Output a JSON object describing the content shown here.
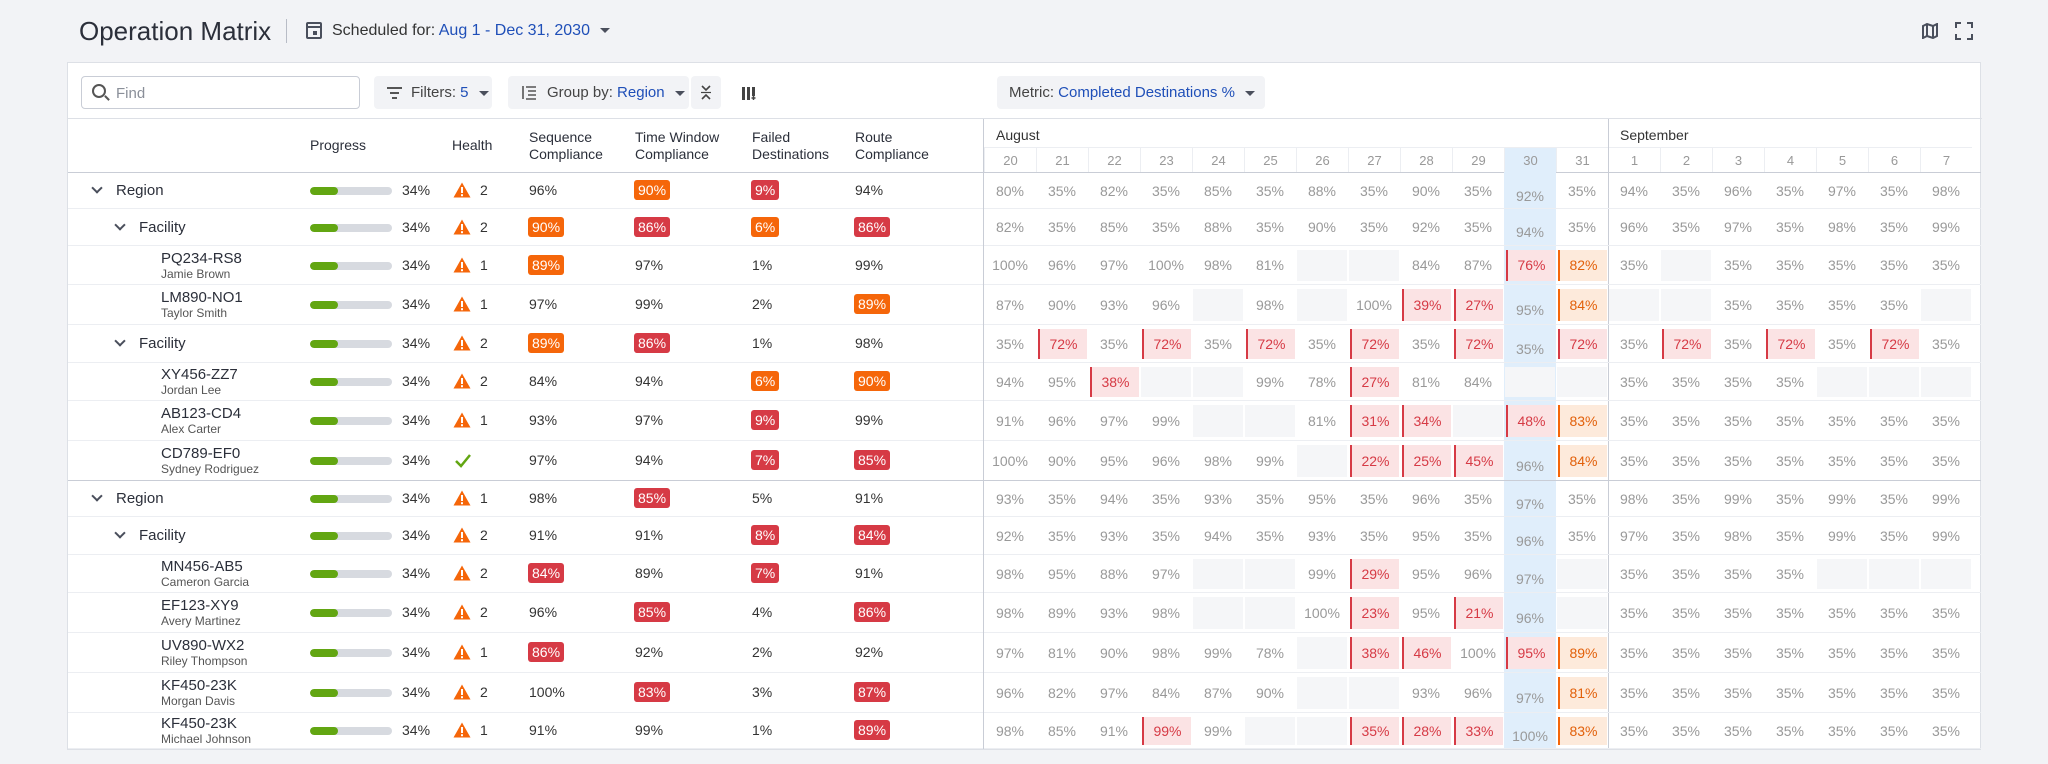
{
  "header": {
    "title": "Operation Matrix",
    "scheduled_label": "Scheduled for:",
    "scheduled_value": "Aug 1 - Dec 31, 2030"
  },
  "toolbar": {
    "search_placeholder": "Find",
    "filters_label": "Filters:",
    "filters_count": "5",
    "group_label": "Group by:",
    "group_value": "Region",
    "metric_label": "Metric:",
    "metric_value": "Completed Destinations %"
  },
  "columns": {
    "progress": "Progress",
    "health": "Health",
    "seq": [
      "Sequence",
      "Compliance"
    ],
    "tw": [
      "Time Window",
      "Compliance"
    ],
    "failed": [
      "Failed",
      "Destinations"
    ],
    "route": [
      "Route",
      "Compliance"
    ]
  },
  "months": [
    {
      "label": "August"
    },
    {
      "label": "September"
    }
  ],
  "days": [
    "20",
    "21",
    "22",
    "23",
    "24",
    "25",
    "26",
    "27",
    "28",
    "29",
    "30",
    "31",
    "1",
    "2",
    "3",
    "4",
    "5",
    "6",
    "7"
  ],
  "today_day_index": 10,
  "colors": {
    "red": "#d63a45",
    "orange": "#f5660a",
    "green": "#62a612"
  },
  "rows": [
    {
      "level": 0,
      "title": "Region",
      "progress": 34,
      "progress_label": "34%",
      "health": "warn",
      "health_count": "2",
      "seq": "96%",
      "tw": "90%",
      "tw_badge": "orange",
      "failed": "9%",
      "failed_badge": "red",
      "route": "94%",
      "cells": [
        "80%",
        "35%",
        "82%",
        "35%",
        "85%",
        "35%",
        "88%",
        "35%",
        "90%",
        "35%",
        "92%",
        "35%",
        "94%",
        "35%",
        "96%",
        "35%",
        "97%",
        "35%",
        "98%"
      ]
    },
    {
      "level": 1,
      "title": "Facility",
      "progress": 34,
      "progress_label": "34%",
      "health": "warn",
      "health_count": "2",
      "seq": "90%",
      "seq_badge": "orange",
      "tw": "86%",
      "tw_badge": "red",
      "failed": "6%",
      "failed_badge": "orange",
      "route": "86%",
      "route_badge": "red",
      "cells": [
        "82%",
        "35%",
        "85%",
        "35%",
        "88%",
        "35%",
        "90%",
        "35%",
        "92%",
        "35%",
        "94%",
        "35%",
        "96%",
        "35%",
        "97%",
        "35%",
        "98%",
        "35%",
        "99%"
      ]
    },
    {
      "level": 2,
      "title": "PQ234-RS8",
      "sub": "Jamie Brown",
      "progress": 34,
      "progress_label": "34%",
      "health": "warn",
      "health_count": "1",
      "seq": "89%",
      "seq_badge": "orange",
      "tw": "97%",
      "failed": "1%",
      "route": "99%",
      "cells": [
        "100%",
        "96%",
        "97%",
        "100%",
        "98%",
        "81%",
        "",
        "",
        "84%",
        "87%",
        "76%|r",
        "82%|o",
        "35%",
        "",
        "35%",
        "35%",
        "35%",
        "35%",
        "35%"
      ]
    },
    {
      "level": 2,
      "title": "LM890-NO1",
      "sub": "Taylor Smith",
      "progress": 34,
      "progress_label": "34%",
      "health": "warn",
      "health_count": "1",
      "seq": "97%",
      "tw": "99%",
      "failed": "2%",
      "route": "89%",
      "route_badge": "orange",
      "cells": [
        "87%",
        "90%",
        "93%",
        "96%",
        "",
        "98%",
        "",
        "100%",
        "39%|r",
        "27%|r",
        "95%",
        "84%|o",
        "",
        "",
        "35%",
        "35%",
        "35%",
        "35%",
        ""
      ]
    },
    {
      "level": 1,
      "title": "Facility",
      "progress": 34,
      "progress_label": "34%",
      "health": "warn",
      "health_count": "2",
      "seq": "89%",
      "seq_badge": "orange",
      "tw": "86%",
      "tw_badge": "red",
      "failed": "1%",
      "route": "98%",
      "cells": [
        "35%",
        "72%|r",
        "35%",
        "72%|r",
        "35%",
        "72%|r",
        "35%",
        "72%|r",
        "35%",
        "72%|r",
        "35%",
        "72%|r",
        "35%",
        "72%|r",
        "35%",
        "72%|r",
        "35%",
        "72%|r",
        "35%"
      ]
    },
    {
      "level": 2,
      "title": "XY456-ZZ7",
      "sub": "Jordan Lee",
      "progress": 34,
      "progress_label": "34%",
      "health": "warn",
      "health_count": "2",
      "seq": "84%",
      "tw": "94%",
      "failed": "6%",
      "failed_badge": "orange",
      "route": "90%",
      "route_badge": "orange",
      "cells": [
        "94%",
        "95%",
        "38%|r",
        "",
        "",
        "99%",
        "78%",
        "27%|r",
        "81%",
        "84%",
        "",
        "",
        "35%",
        "35%",
        "35%",
        "35%",
        "",
        "",
        ""
      ]
    },
    {
      "level": 2,
      "title": "AB123-CD4",
      "sub": "Alex Carter",
      "progress": 34,
      "progress_label": "34%",
      "health": "warn",
      "health_count": "1",
      "seq": "93%",
      "tw": "97%",
      "failed": "9%",
      "failed_badge": "red",
      "route": "99%",
      "cells": [
        "91%",
        "96%",
        "97%",
        "99%",
        "",
        "",
        "81%",
        "31%|r",
        "34%|r",
        "",
        "48%|r",
        "83%|o",
        "35%",
        "35%",
        "35%",
        "35%",
        "35%",
        "35%",
        "35%"
      ]
    },
    {
      "level": 2,
      "title": "CD789-EF0",
      "sub": "Sydney Rodriguez",
      "progress": 34,
      "progress_label": "34%",
      "health": "ok",
      "health_count": "",
      "seq": "97%",
      "tw": "94%",
      "failed": "7%",
      "failed_badge": "red",
      "route": "85%",
      "route_badge": "red",
      "cells": [
        "100%",
        "90%",
        "95%",
        "96%",
        "98%",
        "99%",
        "",
        "22%|r",
        "25%|r",
        "45%|r",
        "96%",
        "84%|o",
        "35%",
        "35%",
        "35%",
        "35%",
        "35%",
        "35%",
        "35%"
      ]
    },
    {
      "level": 0,
      "title": "Region",
      "progress": 34,
      "progress_label": "34%",
      "health": "warn",
      "health_count": "1",
      "seq": "98%",
      "tw": "85%",
      "tw_badge": "red",
      "failed": "5%",
      "route": "91%",
      "cells": [
        "93%",
        "35%",
        "94%",
        "35%",
        "93%",
        "35%",
        "95%",
        "35%",
        "96%",
        "35%",
        "97%",
        "35%",
        "98%",
        "35%",
        "99%",
        "35%",
        "99%",
        "35%",
        "99%"
      ]
    },
    {
      "level": 1,
      "title": "Facility",
      "progress": 34,
      "progress_label": "34%",
      "health": "warn",
      "health_count": "2",
      "seq": "91%",
      "tw": "91%",
      "failed": "8%",
      "failed_badge": "red",
      "route": "84%",
      "route_badge": "red",
      "cells": [
        "92%",
        "35%",
        "93%",
        "35%",
        "94%",
        "35%",
        "93%",
        "35%",
        "95%",
        "35%",
        "96%",
        "35%",
        "97%",
        "35%",
        "98%",
        "35%",
        "99%",
        "35%",
        "99%"
      ]
    },
    {
      "level": 2,
      "title": "MN456-AB5",
      "sub": "Cameron Garcia",
      "progress": 34,
      "progress_label": "34%",
      "health": "warn",
      "health_count": "2",
      "seq": "84%",
      "seq_badge": "red",
      "tw": "89%",
      "failed": "7%",
      "failed_badge": "red",
      "route": "91%",
      "cells": [
        "98%",
        "95%",
        "88%",
        "97%",
        "",
        "",
        "99%",
        "29%|r",
        "95%",
        "96%",
        "97%",
        "",
        "35%",
        "35%",
        "35%",
        "35%",
        "",
        "",
        ""
      ]
    },
    {
      "level": 2,
      "title": "EF123-XY9",
      "sub": "Avery Martinez",
      "progress": 34,
      "progress_label": "34%",
      "health": "warn",
      "health_count": "2",
      "seq": "96%",
      "tw": "85%",
      "tw_badge": "red",
      "failed": "4%",
      "route": "86%",
      "route_badge": "red",
      "cells": [
        "98%",
        "89%",
        "93%",
        "98%",
        "",
        "",
        "100%",
        "23%|r",
        "95%",
        "21%|r",
        "96%",
        "",
        "35%",
        "35%",
        "35%",
        "35%",
        "35%",
        "35%",
        "35%"
      ]
    },
    {
      "level": 2,
      "title": "UV890-WX2",
      "sub": "Riley Thompson",
      "progress": 34,
      "progress_label": "34%",
      "health": "warn",
      "health_count": "1",
      "seq": "86%",
      "seq_badge": "red",
      "tw": "92%",
      "failed": "2%",
      "route": "92%",
      "cells": [
        "97%",
        "81%",
        "90%",
        "98%",
        "99%",
        "78%",
        "",
        "38%|r",
        "46%|r",
        "100%",
        "95%|r",
        "89%|o",
        "35%",
        "35%",
        "35%",
        "35%",
        "35%",
        "35%",
        "35%"
      ]
    },
    {
      "level": 2,
      "title": "KF450-23K",
      "sub": "Morgan Davis",
      "progress": 34,
      "progress_label": "34%",
      "health": "warn",
      "health_count": "2",
      "seq": "100%",
      "tw": "83%",
      "tw_badge": "red",
      "failed": "3%",
      "route": "87%",
      "route_badge": "red",
      "cells": [
        "96%",
        "82%",
        "97%",
        "84%",
        "87%",
        "90%",
        "",
        "",
        "93%",
        "96%",
        "97%",
        "81%|o",
        "35%",
        "35%",
        "35%",
        "35%",
        "35%",
        "35%",
        "35%"
      ]
    },
    {
      "level": 2,
      "title": "KF450-23K",
      "sub": "Michael Johnson",
      "progress": 34,
      "progress_label": "34%",
      "health": "warn",
      "health_count": "1",
      "seq": "91%",
      "tw": "99%",
      "failed": "1%",
      "route": "89%",
      "route_badge": "red",
      "cells": [
        "98%",
        "85%",
        "91%",
        "99%|r",
        "99%",
        "",
        "",
        "35%|r",
        "28%|r",
        "33%|r",
        "100%",
        "83%|o",
        "35%",
        "35%",
        "35%",
        "35%",
        "35%",
        "35%",
        "35%"
      ]
    }
  ]
}
